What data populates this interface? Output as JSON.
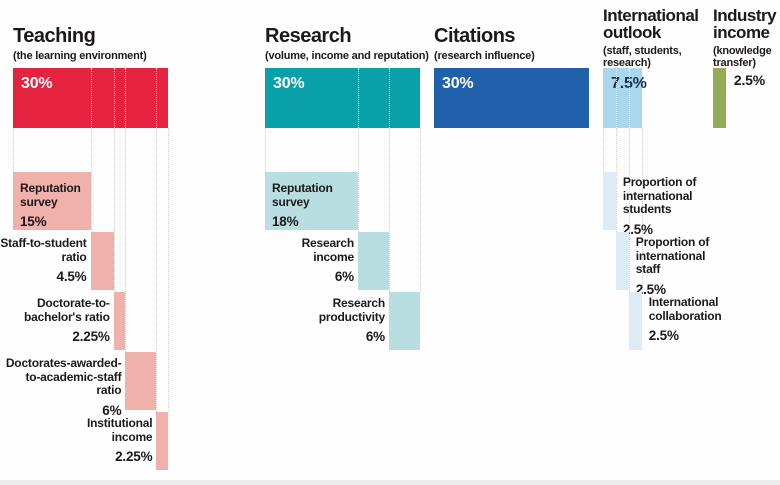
{
  "chart_data": {
    "type": "bar",
    "title": "Ranking methodology weightings",
    "unit": "percent of overall score",
    "legend_position": "none",
    "grid": false,
    "style": {
      "connector_line_color": "#cfcfcf",
      "in_bar_divider_color": "#ffffff",
      "text_color": "#1d191a",
      "background": "#fefefe"
    },
    "groups": [
      {
        "name": "Teaching",
        "title_lines": [
          "Teaching"
        ],
        "subtitle": "(the learning environment)",
        "subtitle_lines": [
          "(the learning environment)"
        ],
        "total": 30,
        "total_label": "30%",
        "total_label_outside": false,
        "colors": {
          "main": "#e32340",
          "sub": "#f0b1ab",
          "total_text": "#ffffff"
        },
        "components": [
          {
            "label": "Reputation survey",
            "label_lines": [
              "Reputation",
              "survey"
            ],
            "value": 15,
            "value_label": "15%",
            "label_side": "inside"
          },
          {
            "label": "Staff-to-student ratio",
            "label_lines": [
              "Staff-to-student",
              "ratio"
            ],
            "value": 4.5,
            "value_label": "4.5%",
            "label_side": "left"
          },
          {
            "label": "Doctorate-to-bachelor's ratio",
            "label_lines": [
              "Doctorate-to-",
              "bachelor's ratio"
            ],
            "value": 2.25,
            "value_label": "2.25%",
            "label_side": "left"
          },
          {
            "label": "Doctorates-awarded-to-academic-staff ratio",
            "label_lines": [
              "Doctorates-awarded-",
              "to-academic-staff",
              "ratio"
            ],
            "value": 6,
            "value_label": "6%",
            "label_side": "left"
          },
          {
            "label": "Institutional income",
            "label_lines": [
              "Institutional",
              "income"
            ],
            "value": 2.25,
            "value_label": "2.25%",
            "label_side": "left"
          }
        ]
      },
      {
        "name": "Research",
        "title_lines": [
          "Research"
        ],
        "subtitle": "(volume, income and reputation)",
        "subtitle_lines": [
          "(volume, income and reputation)"
        ],
        "total": 30,
        "total_label": "30%",
        "total_label_outside": false,
        "colors": {
          "main": "#08a1aa",
          "sub": "#b9dee1",
          "total_text": "#ffffff"
        },
        "components": [
          {
            "label": "Reputation survey",
            "label_lines": [
              "Reputation",
              "survey"
            ],
            "value": 18,
            "value_label": "18%",
            "label_side": "inside"
          },
          {
            "label": "Research income",
            "label_lines": [
              "Research",
              "income"
            ],
            "value": 6,
            "value_label": "6%",
            "label_side": "left"
          },
          {
            "label": "Research productivity",
            "label_lines": [
              "Research",
              "productivity"
            ],
            "value": 6,
            "value_label": "6%",
            "label_side": "left"
          }
        ]
      },
      {
        "name": "Citations",
        "title_lines": [
          "Citations"
        ],
        "subtitle": "(research influence)",
        "subtitle_lines": [
          "(research influence)"
        ],
        "total": 30,
        "total_label": "30%",
        "total_label_outside": false,
        "colors": {
          "main": "#2161ab",
          "sub": "#2161ab",
          "total_text": "#ffffff"
        },
        "components": []
      },
      {
        "name": "International outlook",
        "title_lines": [
          "International",
          "outlook"
        ],
        "subtitle": "(staff, students, research)",
        "subtitle_lines": [
          "(staff, students,",
          "research)"
        ],
        "total": 7.5,
        "total_label": "7.5%",
        "total_label_outside": false,
        "colors": {
          "main": "#a9d7ed",
          "sub": "#dcebf6",
          "total_text": "#1b2f52"
        },
        "components": [
          {
            "label": "Proportion of international students",
            "label_lines": [
              "Proportion of",
              "international",
              "students"
            ],
            "value": 2.5,
            "value_label": "2.5%",
            "label_side": "right"
          },
          {
            "label": "Proportion of international staff",
            "label_lines": [
              "Proportion of",
              "international",
              "staff"
            ],
            "value": 2.5,
            "value_label": "2.5%",
            "label_side": "right"
          },
          {
            "label": "International collaboration",
            "label_lines": [
              "International",
              "collaboration"
            ],
            "value": 2.5,
            "value_label": "2.5%",
            "label_side": "right"
          }
        ]
      },
      {
        "name": "Industry income",
        "title_lines": [
          "Industry",
          "income"
        ],
        "subtitle": "(knowledge transfer)",
        "subtitle_lines": [
          "(knowledge",
          "transfer)"
        ],
        "total": 2.5,
        "total_label": "2.5%",
        "total_label_outside": true,
        "colors": {
          "main": "#94ac55",
          "sub": "#94ac55",
          "total_text": "#1d191a"
        },
        "components": []
      }
    ]
  }
}
